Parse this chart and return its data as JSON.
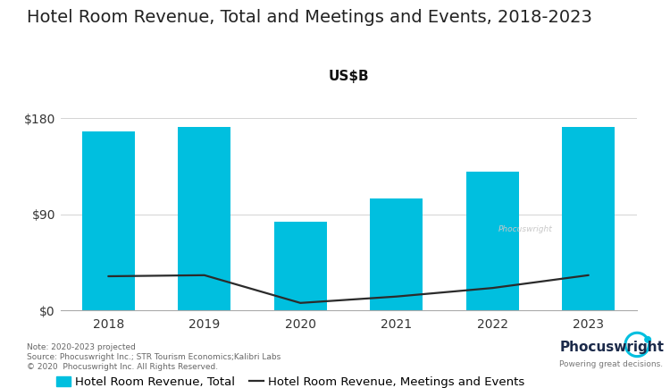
{
  "title": "Hotel Room Revenue, Total and Meetings and Events, 2018-2023",
  "subtitle": "US$B",
  "years": [
    2018,
    2019,
    2020,
    2021,
    2022,
    2023
  ],
  "bar_values": [
    168,
    172,
    83,
    105,
    130,
    172
  ],
  "line_values": [
    32,
    33,
    7,
    13,
    21,
    33
  ],
  "bar_color": "#00BFDF",
  "line_color": "#2b2b2b",
  "background_color": "#FFFFFF",
  "ylim": [
    0,
    200
  ],
  "yticks": [
    0,
    90,
    180
  ],
  "ytick_labels": [
    "$0",
    "$90",
    "$180"
  ],
  "legend_bar_label": "Hotel Room Revenue, Total",
  "legend_line_label": "Hotel Room Revenue, Meetings and Events",
  "note_line1": "Note: 2020-2023 projected",
  "note_line2": "Source: Phocuswright Inc.; STR Tourism Economics;Kalibri Labs",
  "note_line3": "© 2020  Phocuswright Inc. All Rights Reserved.",
  "watermark_text": "Phocuswright",
  "title_fontsize": 14,
  "subtitle_fontsize": 11,
  "tick_fontsize": 10,
  "legend_fontsize": 9.5,
  "note_fontsize": 6.5
}
